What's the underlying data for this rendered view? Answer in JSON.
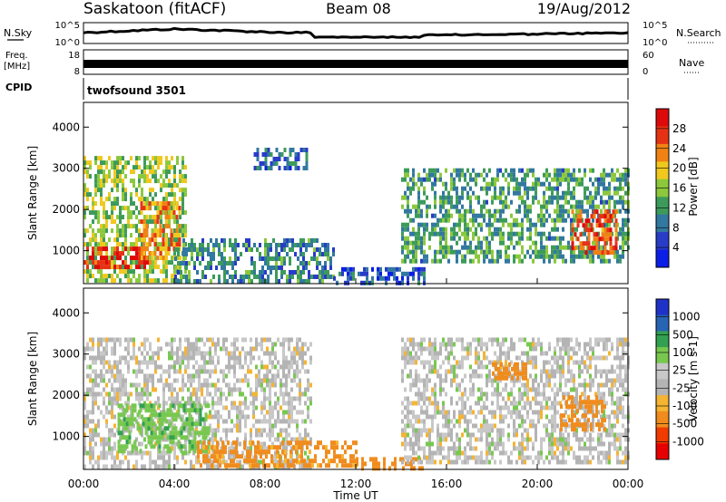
{
  "header": {
    "station": "Saskatoon (fitACF)",
    "beam": "Beam 08",
    "date": "19/Aug/2012"
  },
  "top_panels": {
    "noise": {
      "left_label": "N.Sky",
      "left_ticks": [
        "10^5",
        "10^0"
      ],
      "right_ticks": [
        "10^5",
        "10^0"
      ],
      "right_label": "N.Search"
    },
    "freq": {
      "left_label_1": "Freq.",
      "left_label_2": "[MHz]",
      "left_ticks": [
        "18",
        "8"
      ],
      "right_ticks": [
        "60",
        "0"
      ],
      "right_label": "Nave"
    },
    "cpid": {
      "label": "CPID",
      "value": "twofsound 3501"
    }
  },
  "colors": {
    "power_scale": [
      "#0a1ee6",
      "#283cc8",
      "#3278a0",
      "#3c9b5a",
      "#8cc83c",
      "#f0c81e",
      "#f08214",
      "#e63214",
      "#dc0a0a"
    ],
    "velocity_scale": [
      "#e60000",
      "#f03c00",
      "#f08c1e",
      "#f5b432",
      "#b4b4b4",
      "#c8c8c8",
      "#78c850",
      "#32a050",
      "#2864b4",
      "#1e32c8"
    ]
  },
  "chart_data": [
    {
      "type": "heatmap",
      "panel": "power",
      "ylabel": "Slant Range [km]",
      "yticks": [
        "1000",
        "2000",
        "3000",
        "4000"
      ],
      "ylim": [
        200,
        4600
      ],
      "xlim": [
        "00:00",
        "24:00"
      ],
      "xticks": [
        "00:00",
        "04:00",
        "08:00",
        "12:00",
        "16:00",
        "20:00",
        "00:00"
      ],
      "xlabel": "Time UT",
      "colorbar": {
        "label": "Power [dB]",
        "range": [
          0,
          32
        ],
        "tick_labels": [
          "4",
          "8",
          "12",
          "16",
          "20",
          "24",
          "28"
        ]
      },
      "echo_regions": [
        {
          "t_start": 0.0,
          "t_end": 4.5,
          "r_min": 300,
          "r_max": 3300,
          "power": 16
        },
        {
          "t_start": 0.0,
          "t_end": 3.0,
          "r_min": 600,
          "r_max": 1100,
          "power": 28
        },
        {
          "t_start": 2.5,
          "t_end": 4.2,
          "r_min": 800,
          "r_max": 2200,
          "power": 22
        },
        {
          "t_start": 4.0,
          "t_end": 11.0,
          "r_min": 300,
          "r_max": 1300,
          "power": 10
        },
        {
          "t_start": 7.5,
          "t_end": 9.8,
          "r_min": 3000,
          "r_max": 3500,
          "power": 8
        },
        {
          "t_start": 11.0,
          "t_end": 15.0,
          "r_min": 250,
          "r_max": 600,
          "power": 6
        },
        {
          "t_start": 14.0,
          "t_end": 24.0,
          "r_min": 700,
          "r_max": 3000,
          "power": 12
        },
        {
          "t_start": 21.5,
          "t_end": 23.5,
          "r_min": 1000,
          "r_max": 2000,
          "power": 26
        }
      ]
    },
    {
      "type": "heatmap",
      "panel": "velocity",
      "ylabel": "Slant Range [km]",
      "yticks": [
        "1000",
        "2000",
        "3000",
        "4000"
      ],
      "ylim": [
        200,
        4600
      ],
      "xlim": [
        "00:00",
        "24:00"
      ],
      "xticks": [
        "00:00",
        "04:00",
        "08:00",
        "12:00",
        "16:00",
        "20:00",
        "00:00"
      ],
      "xlabel": "Time UT",
      "colorbar": {
        "label": "Velocity [m s-1]",
        "tick_labels": [
          "1000",
          "500",
          "100",
          "25",
          "-25",
          "-100",
          "-500",
          "-1000"
        ]
      },
      "echo_regions": [
        {
          "t_start": 0.0,
          "t_end": 10.0,
          "r_min": 300,
          "r_max": 3400,
          "velocity": 0
        },
        {
          "t_start": 1.5,
          "t_end": 5.5,
          "r_min": 600,
          "r_max": 1800,
          "velocity": 80
        },
        {
          "t_start": 5.0,
          "t_end": 12.0,
          "r_min": 250,
          "r_max": 900,
          "velocity": -120
        },
        {
          "t_start": 12.0,
          "t_end": 15.0,
          "r_min": 250,
          "r_max": 500,
          "velocity": -150
        },
        {
          "t_start": 14.0,
          "t_end": 24.0,
          "r_min": 400,
          "r_max": 3400,
          "velocity": 0
        },
        {
          "t_start": 18.0,
          "t_end": 19.5,
          "r_min": 2400,
          "r_max": 2800,
          "velocity": -400
        },
        {
          "t_start": 21.0,
          "t_end": 23.0,
          "r_min": 1200,
          "r_max": 2000,
          "velocity": -300
        }
      ]
    }
  ]
}
